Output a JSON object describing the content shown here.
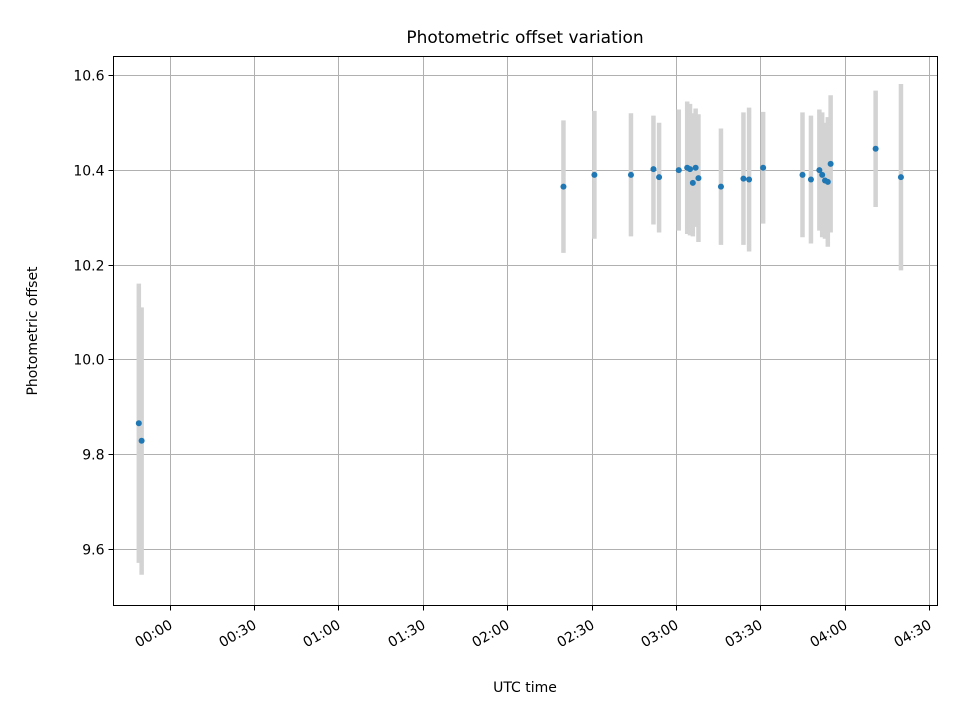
{
  "chart_data": {
    "type": "scatter",
    "title": "Photometric offset variation",
    "xlabel": "UTC time",
    "ylabel": "Photometric offset",
    "xlim": [
      "23:40",
      "04:33"
    ],
    "ylim": [
      9.48,
      10.64
    ],
    "x_ticks": [
      "00:00",
      "00:30",
      "01:00",
      "01:30",
      "02:00",
      "02:30",
      "03:00",
      "03:30",
      "04:00",
      "04:30"
    ],
    "y_ticks": [
      "9.6",
      "9.8",
      "10.0",
      "10.2",
      "10.4",
      "10.6"
    ],
    "grid": true,
    "colors": {
      "points": "#1f77b4",
      "errorbars": "#d3d3d3",
      "grid": "#b0b0b0"
    },
    "points": [
      {
        "time": "23:49",
        "y": 9.865,
        "err_lo": 9.57,
        "err_hi": 10.16
      },
      {
        "time": "23:50",
        "y": 9.828,
        "err_lo": 9.545,
        "err_hi": 10.11
      },
      {
        "time": "02:20",
        "y": 10.365,
        "err_lo": 10.225,
        "err_hi": 10.505
      },
      {
        "time": "02:31",
        "y": 10.39,
        "err_lo": 10.255,
        "err_hi": 10.525
      },
      {
        "time": "02:44",
        "y": 10.39,
        "err_lo": 10.26,
        "err_hi": 10.52
      },
      {
        "time": "02:52",
        "y": 10.402,
        "err_lo": 10.285,
        "err_hi": 10.515
      },
      {
        "time": "02:54",
        "y": 10.385,
        "err_lo": 10.268,
        "err_hi": 10.5
      },
      {
        "time": "03:01",
        "y": 10.4,
        "err_lo": 10.272,
        "err_hi": 10.528
      },
      {
        "time": "03:04",
        "y": 10.405,
        "err_lo": 10.265,
        "err_hi": 10.545
      },
      {
        "time": "03:05",
        "y": 10.402,
        "err_lo": 10.262,
        "err_hi": 10.54
      },
      {
        "time": "03:06",
        "y": 10.373,
        "err_lo": 10.26,
        "err_hi": 10.52
      },
      {
        "time": "03:07",
        "y": 10.405,
        "err_lo": 10.28,
        "err_hi": 10.53
      },
      {
        "time": "03:08",
        "y": 10.383,
        "err_lo": 10.248,
        "err_hi": 10.518
      },
      {
        "time": "03:16",
        "y": 10.365,
        "err_lo": 10.242,
        "err_hi": 10.488
      },
      {
        "time": "03:24",
        "y": 10.382,
        "err_lo": 10.242,
        "err_hi": 10.522
      },
      {
        "time": "03:26",
        "y": 10.38,
        "err_lo": 10.228,
        "err_hi": 10.532
      },
      {
        "time": "03:31",
        "y": 10.405,
        "err_lo": 10.287,
        "err_hi": 10.523
      },
      {
        "time": "03:45",
        "y": 10.39,
        "err_lo": 10.258,
        "err_hi": 10.522
      },
      {
        "time": "03:48",
        "y": 10.38,
        "err_lo": 10.245,
        "err_hi": 10.515
      },
      {
        "time": "03:51",
        "y": 10.4,
        "err_lo": 10.272,
        "err_hi": 10.528
      },
      {
        "time": "03:52",
        "y": 10.39,
        "err_lo": 10.258,
        "err_hi": 10.522
      },
      {
        "time": "03:53",
        "y": 10.378,
        "err_lo": 10.255,
        "err_hi": 10.5
      },
      {
        "time": "03:54",
        "y": 10.375,
        "err_lo": 10.238,
        "err_hi": 10.512
      },
      {
        "time": "03:55",
        "y": 10.413,
        "err_lo": 10.268,
        "err_hi": 10.558
      },
      {
        "time": "04:11",
        "y": 10.445,
        "err_lo": 10.322,
        "err_hi": 10.568
      },
      {
        "time": "04:20",
        "y": 10.385,
        "err_lo": 10.188,
        "err_hi": 10.582
      }
    ]
  }
}
